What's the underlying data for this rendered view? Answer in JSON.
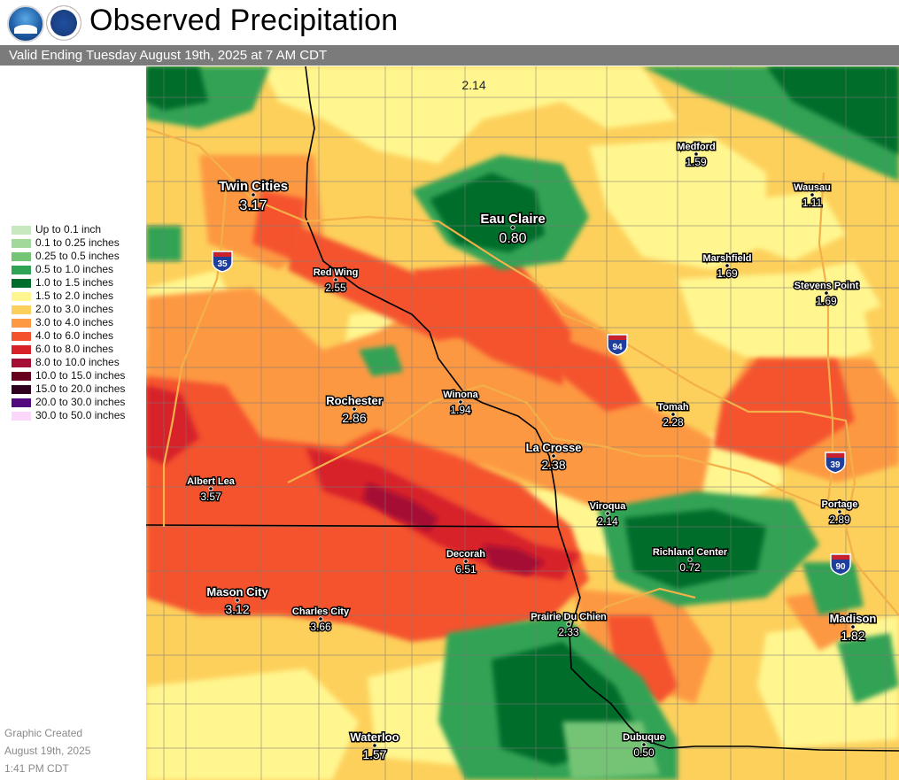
{
  "header": {
    "title": "Observed Precipitation",
    "subtitle": "Valid Ending Tuesday August 19th, 2025 at 7 AM CDT",
    "logos": [
      "noaa-logo",
      "nws-logo"
    ]
  },
  "legend": [
    {
      "label": "Up to 0.1 inch",
      "color": "#c7e9c0"
    },
    {
      "label": "0.1 to 0.25 inches",
      "color": "#a1d99b"
    },
    {
      "label": "0.25 to 0.5 inches",
      "color": "#74c476"
    },
    {
      "label": "0.5 to 1.0 inches",
      "color": "#31a354"
    },
    {
      "label": "1.0 to 1.5 inches",
      "color": "#006d2c"
    },
    {
      "label": "1.5 to 2.0 inches",
      "color": "#fff68f"
    },
    {
      "label": "2.0 to 3.0 inches",
      "color": "#fdd05b"
    },
    {
      "label": "3.0 to 4.0 inches",
      "color": "#fd9843"
    },
    {
      "label": "4.0 to 6.0 inches",
      "color": "#f4522d"
    },
    {
      "label": "6.0 to 8.0 inches",
      "color": "#d72229"
    },
    {
      "label": "8.0 to 10.0 inches",
      "color": "#a50f35"
    },
    {
      "label": "10.0 to 15.0 inches",
      "color": "#67001f"
    },
    {
      "label": "15.0 to 20.0 inches",
      "color": "#300020"
    },
    {
      "label": "20.0 to 30.0 inches",
      "color": "#54087e"
    },
    {
      "label": "30.0 to 50.0 inches",
      "color": "#fbd7fb"
    }
  ],
  "footer": {
    "line1": "Graphic Created",
    "line2": "August 19th, 2025",
    "line3": "1:41 PM CDT"
  },
  "cities": [
    {
      "name": "Twin Cities",
      "value": "3.17",
      "size": "large"
    },
    {
      "name": "Eau Claire",
      "value": "0.80",
      "size": "large"
    },
    {
      "name": "Medford",
      "value": "1.59",
      "size": "small"
    },
    {
      "name": "Wausau",
      "value": "1.11",
      "size": "small"
    },
    {
      "name": "Marshfield",
      "value": "1.69",
      "size": "small"
    },
    {
      "name": "Stevens Point",
      "value": "1.69",
      "size": "small"
    },
    {
      "name": "Red Wing",
      "value": "2.55",
      "size": "small"
    },
    {
      "name": "Winona",
      "value": "1.94",
      "size": "small"
    },
    {
      "name": "Rochester",
      "value": "2.86",
      "size": "medium"
    },
    {
      "name": "Tomah",
      "value": "2.28",
      "size": "small"
    },
    {
      "name": "La Crosse",
      "value": "2.38",
      "size": "medium"
    },
    {
      "name": "Albert Lea",
      "value": "3.57",
      "size": "small"
    },
    {
      "name": "Viroqua",
      "value": "2.14",
      "size": "small"
    },
    {
      "name": "Portage",
      "value": "2.89",
      "size": "small"
    },
    {
      "name": "Richland Center",
      "value": "0.72",
      "size": "small"
    },
    {
      "name": "Decorah",
      "value": "6.51",
      "size": "small"
    },
    {
      "name": "Mason City",
      "value": "3.12",
      "size": "medium"
    },
    {
      "name": "Charles City",
      "value": "3.66",
      "size": "small"
    },
    {
      "name": "Prairie Du Chien",
      "value": "2.33",
      "size": "small"
    },
    {
      "name": "Madison",
      "value": "1.82",
      "size": "medium"
    },
    {
      "name": "Waterloo",
      "value": "1.57",
      "size": "medium"
    },
    {
      "name": "Dubuque",
      "value": "0.50",
      "size": "small"
    }
  ],
  "floating_values": [
    {
      "value": "2.14"
    }
  ],
  "interstates": [
    {
      "number": "35"
    },
    {
      "number": "94"
    },
    {
      "number": "39"
    },
    {
      "number": "90"
    }
  ]
}
